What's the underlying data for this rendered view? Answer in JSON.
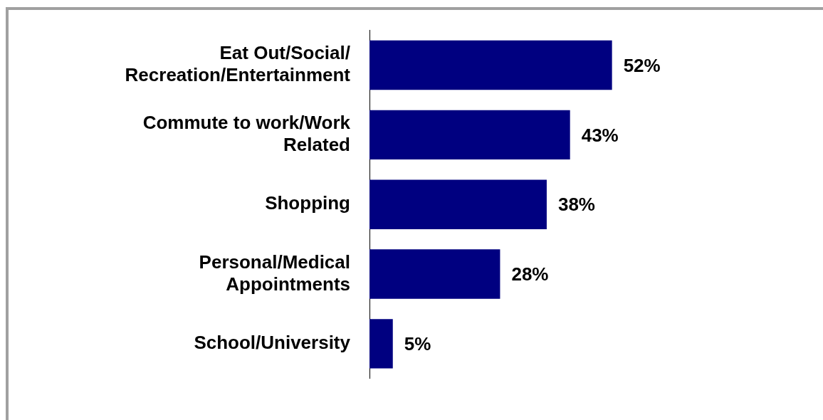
{
  "chart_data": {
    "type": "bar",
    "orientation": "horizontal",
    "categories": [
      "Eat Out/Social/ Recreation/Entertainment",
      "Commute to work/Work Related",
      "Shopping",
      "Personal/Medical Appointments",
      "School/University"
    ],
    "values": [
      52,
      43,
      38,
      28,
      5
    ],
    "value_labels": [
      "52%",
      "43%",
      "38%",
      "28%",
      "5%"
    ],
    "color": "#000080",
    "legend": false
  }
}
